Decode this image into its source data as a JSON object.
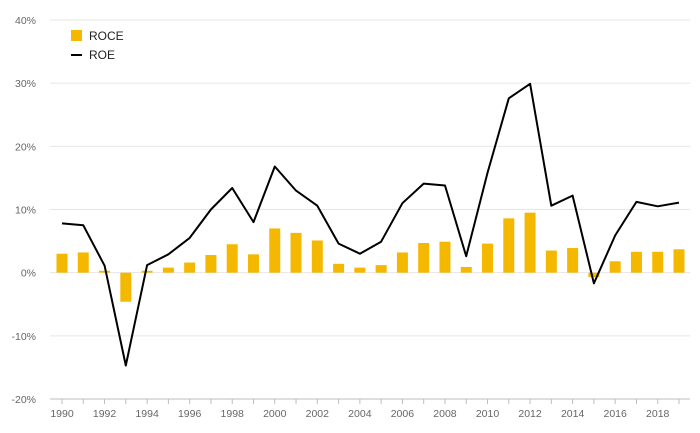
{
  "chart_data": {
    "type": "bar",
    "x": [
      1990,
      1991,
      1992,
      1993,
      1994,
      1995,
      1996,
      1997,
      1998,
      1999,
      2000,
      2001,
      2002,
      2003,
      2004,
      2005,
      2006,
      2007,
      2008,
      2009,
      2010,
      2011,
      2012,
      2013,
      2014,
      2015,
      2016,
      2017,
      2018,
      2019
    ],
    "series": [
      {
        "name": "ROCE",
        "type": "bar",
        "color": "#f5b800",
        "values": [
          3.0,
          3.2,
          0.3,
          -4.6,
          0.3,
          0.8,
          1.6,
          2.8,
          4.5,
          2.9,
          7.0,
          6.3,
          5.1,
          1.4,
          0.8,
          1.2,
          3.2,
          4.7,
          4.9,
          0.9,
          4.6,
          8.6,
          9.5,
          3.5,
          3.9,
          -0.7,
          1.8,
          3.3,
          3.3,
          3.7
        ]
      },
      {
        "name": "ROE",
        "type": "line",
        "color": "#000000",
        "values": [
          7.8,
          7.5,
          1.1,
          -14.7,
          1.2,
          2.9,
          5.5,
          10.0,
          13.4,
          8.0,
          16.8,
          13.0,
          10.6,
          4.6,
          3.0,
          4.9,
          11.0,
          14.1,
          13.8,
          2.6,
          15.8,
          27.6,
          29.9,
          10.6,
          12.2,
          -1.7,
          5.9,
          11.2,
          10.5,
          11.1
        ]
      }
    ],
    "ylim": [
      -20,
      40
    ],
    "yticks": [
      -20,
      -10,
      0,
      10,
      20,
      30,
      40
    ],
    "ytick_labels": [
      "-20%",
      "-10%",
      "0%",
      "10%",
      "20%",
      "30%",
      "40%"
    ],
    "xticks": [
      1990,
      1992,
      1994,
      1996,
      1998,
      2000,
      2002,
      2004,
      2006,
      2008,
      2010,
      2012,
      2014,
      2016,
      2018
    ],
    "xtick_labels": [
      "1990",
      "1992",
      "1994",
      "1996",
      "1998",
      "2000",
      "2002",
      "2004",
      "2006",
      "2008",
      "2010",
      "2012",
      "2014",
      "2016",
      "2018"
    ],
    "grid": "horizontal",
    "legend_position": "top-left",
    "title": "",
    "xlabel": "",
    "ylabel": ""
  }
}
